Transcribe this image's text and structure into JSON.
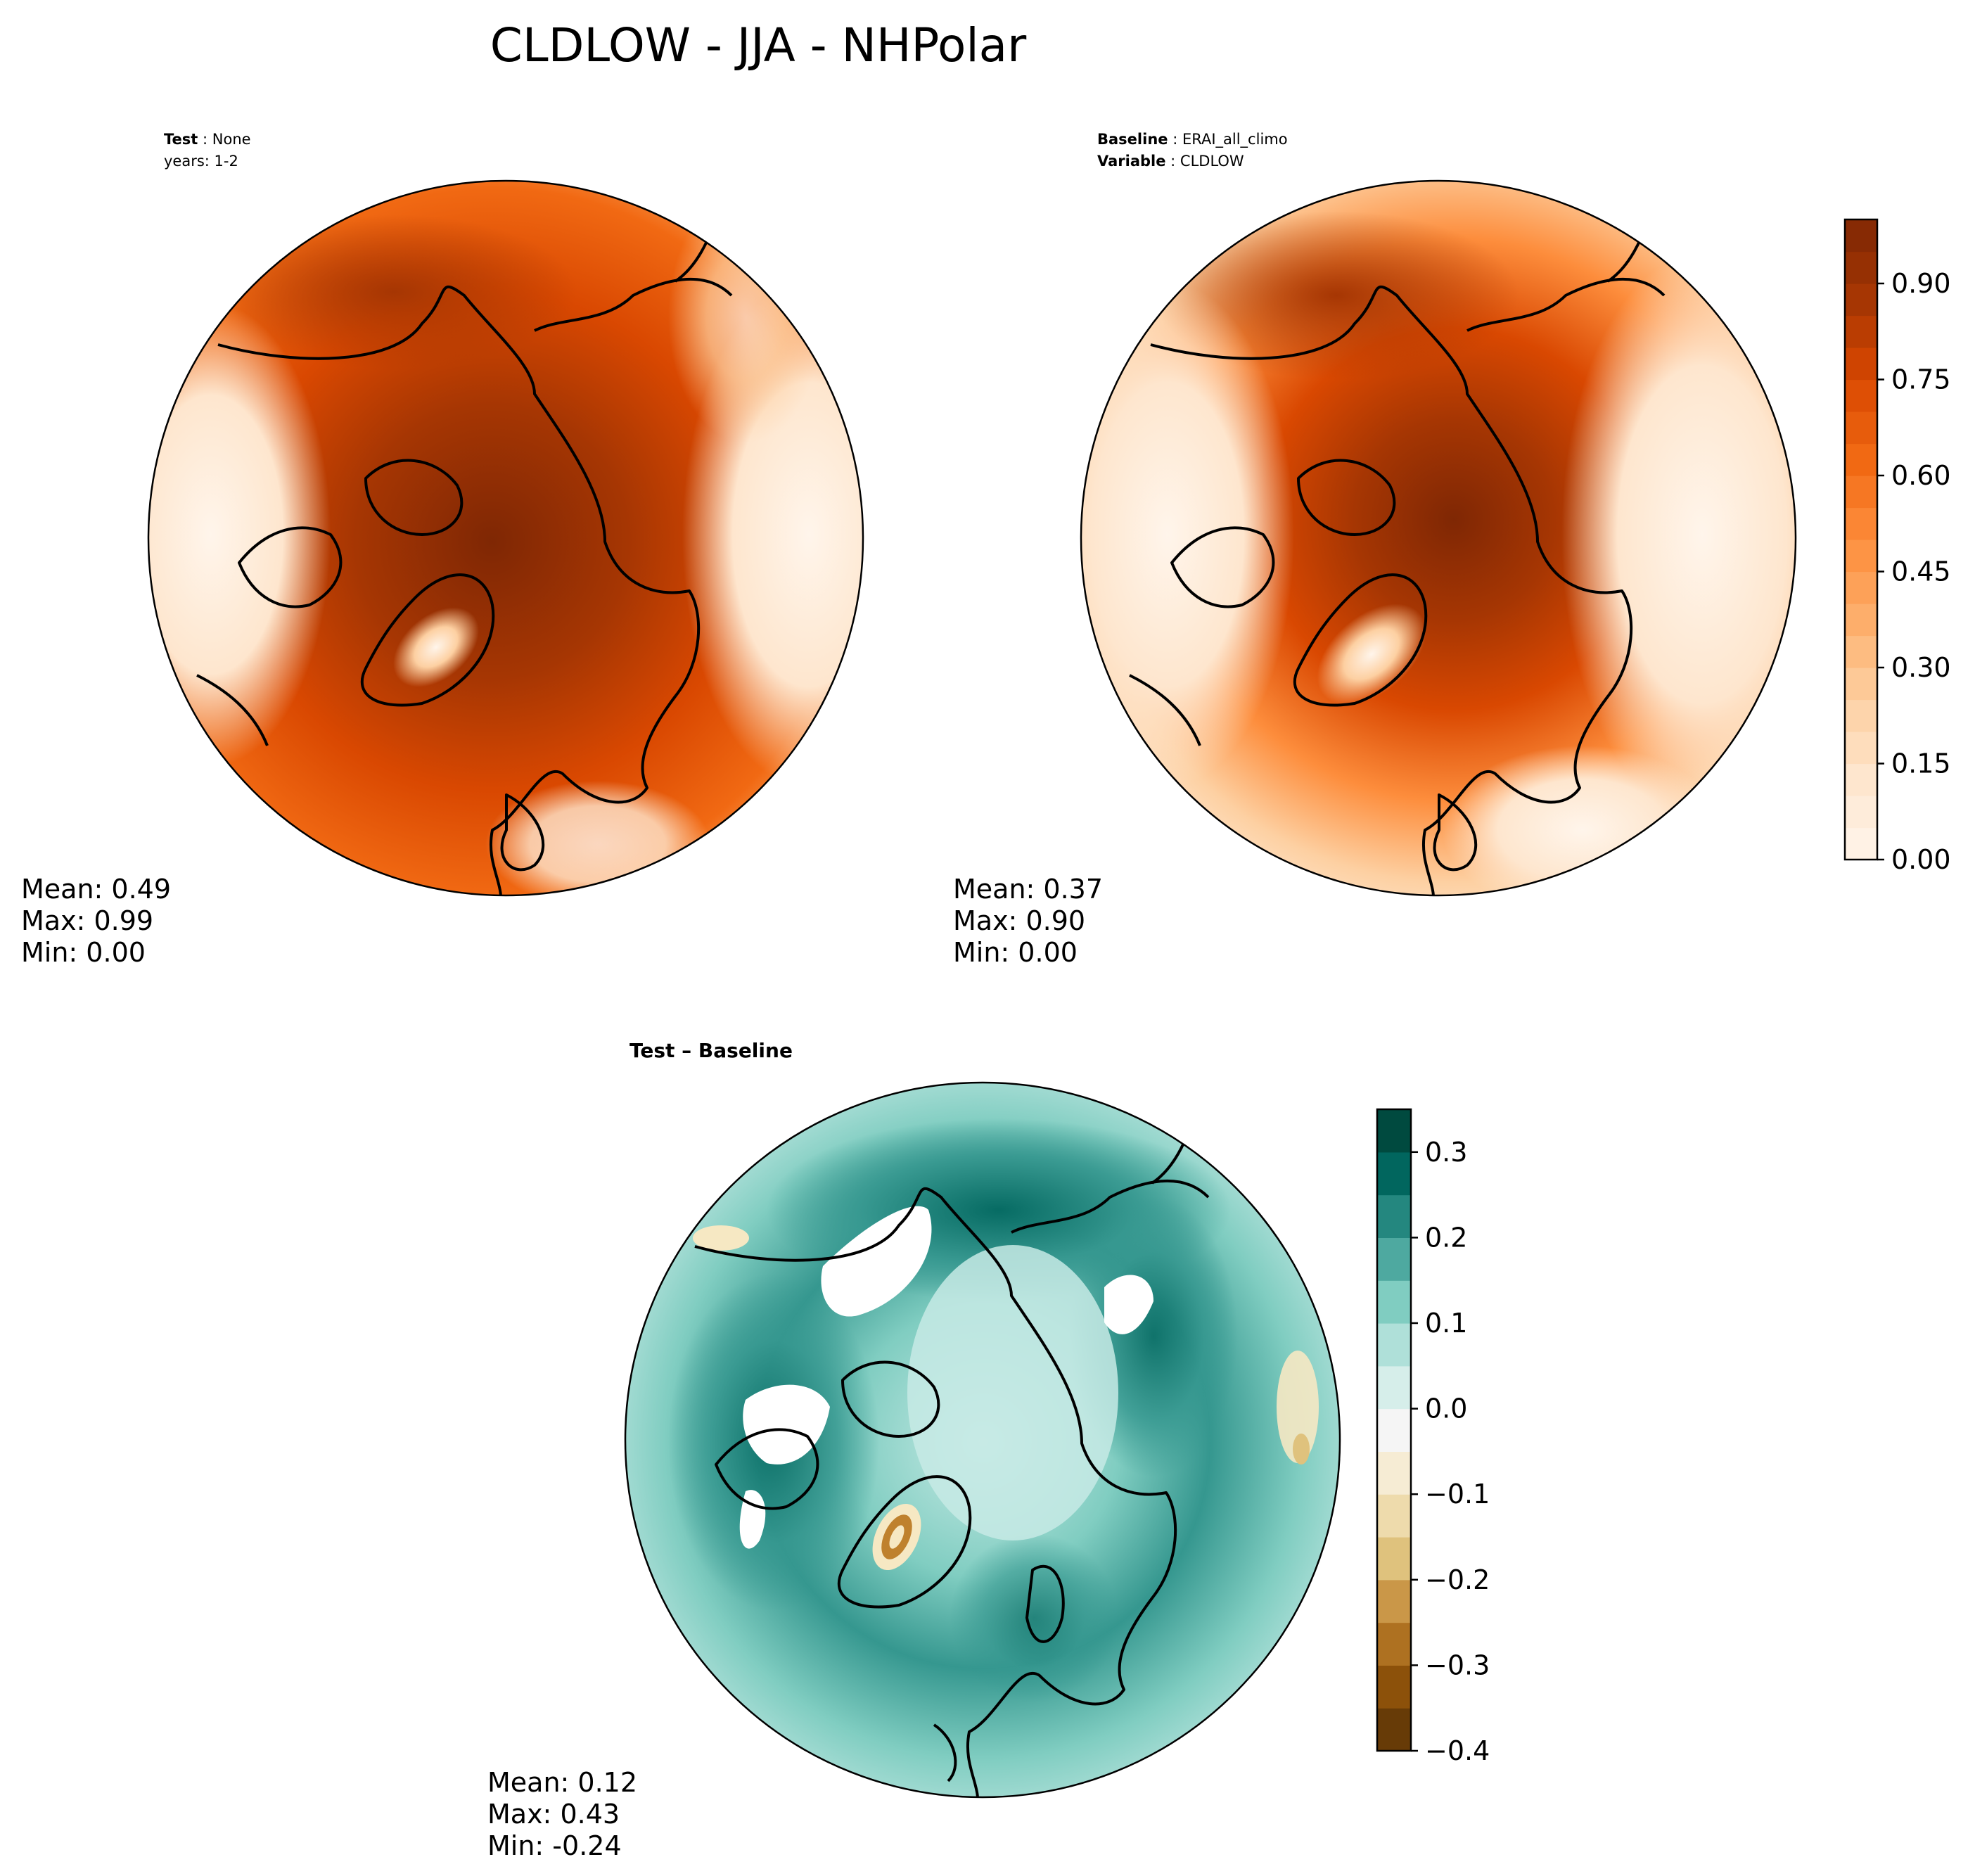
{
  "chart_data": [
    {
      "type": "heatmap",
      "title": "CLDLOW - JJA - NHPolar",
      "panel": "test",
      "label_key": "Test",
      "label_value": "None",
      "label_line2": "years: 1-2",
      "projection": "north polar stereographic",
      "stats": {
        "mean": "Mean:  0.49",
        "max": "Max:  0.99",
        "min": "Min:  0.00"
      },
      "colormap": "Oranges",
      "value_range": [
        0.0,
        1.0
      ]
    },
    {
      "type": "heatmap",
      "panel": "baseline",
      "label_key": "Baseline",
      "label_value": "ERAI_all_climo",
      "label_key2": "Variable",
      "label_value2": "CLDLOW",
      "projection": "north polar stereographic",
      "stats": {
        "mean": "Mean:  0.37",
        "max": "Max:  0.90",
        "min": "Min:  0.00"
      },
      "colorbar": {
        "ticks": [
          "0.00",
          "0.15",
          "0.30",
          "0.45",
          "0.60",
          "0.75",
          "0.90"
        ],
        "tick_values": [
          0.0,
          0.15,
          0.3,
          0.45,
          0.6,
          0.75,
          0.9
        ],
        "range": [
          0.0,
          1.0
        ],
        "levels": 20
      }
    },
    {
      "type": "heatmap",
      "panel": "difference",
      "label": "Test – Baseline",
      "projection": "north polar stereographic",
      "stats": {
        "mean": "Mean:  0.12",
        "max": "Max:  0.43",
        "min": "Min: -0.24"
      },
      "colorbar": {
        "ticks": [
          "0.3",
          "0.2",
          "0.1",
          "0.0",
          "−0.1",
          "−0.2",
          "−0.3",
          "−0.4"
        ],
        "tick_values": [
          0.3,
          0.2,
          0.1,
          0.0,
          -0.1,
          -0.2,
          -0.3,
          -0.4
        ],
        "range": [
          -0.4,
          0.35
        ],
        "levels": 15
      }
    }
  ],
  "colors": {
    "oranges": [
      "#fff5eb",
      "#fee6ce",
      "#fdd0a2",
      "#fdae6b",
      "#fd8d3c",
      "#f16913",
      "#d94801",
      "#a63603",
      "#7f2704"
    ],
    "brbg": [
      "#543005",
      "#8c510a",
      "#bf812d",
      "#dfc27d",
      "#f6e8c3",
      "#f5f5f5",
      "#c7eae5",
      "#80cdc1",
      "#35978f",
      "#01665e",
      "#003c30"
    ]
  }
}
